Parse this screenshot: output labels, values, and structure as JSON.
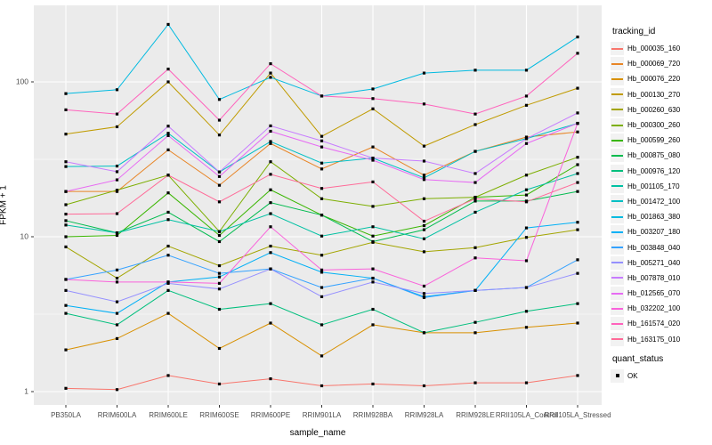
{
  "axes": {
    "x_title": "sample_name",
    "y_title": "FPKM + 1",
    "y_tick_labels": [
      "1",
      "10",
      "100"
    ]
  },
  "legend": {
    "tracking_title": "tracking_id",
    "quant_title": "quant_status",
    "quant_items": [
      {
        "label": "OK"
      }
    ]
  },
  "style": {
    "panel_bg": "#EBEBEB",
    "grid_color": "#FFFFFF",
    "tick_text_color": "#4D4D4D",
    "tick_mark_color": "#333333",
    "marker_color": "#000000",
    "legend_key_bg": "#F2F2F2"
  },
  "chart_data": {
    "type": "line",
    "title": "",
    "xlabel": "sample_name",
    "ylabel": "FPKM + 1",
    "y_scale": "log10",
    "ylim": [
      0.82,
      312
    ],
    "y_ticks": [
      1,
      10,
      100
    ],
    "y_minor_ticks": [
      3.162,
      31.62,
      316.2
    ],
    "grid": true,
    "legend_position": "right",
    "marker": "black-square (quant_status OK)",
    "categories": [
      "PB350LA",
      "RRIM600LA",
      "RRIM600LE",
      "RRIM600SE",
      "RRIM600PE",
      "RRIM901LA",
      "RRIM928BA",
      "RRIM928LA",
      "RRIM928LE",
      "RRII105LA_Control",
      "RRII105LA_Stressed"
    ],
    "series": [
      {
        "name": "Hb_000035_160",
        "color": "#F8766D",
        "values": [
          1.05,
          1.03,
          1.27,
          1.12,
          1.21,
          1.09,
          1.12,
          1.09,
          1.14,
          1.14,
          1.27
        ]
      },
      {
        "name": "Hb_000069_720",
        "color": "#E88526",
        "values": [
          19.6,
          19.6,
          36.4,
          21.5,
          40,
          27.4,
          38,
          25,
          35.6,
          44,
          47.5
        ]
      },
      {
        "name": "Hb_000076_220",
        "color": "#D89000",
        "values": [
          1.86,
          2.2,
          3.2,
          1.9,
          2.77,
          1.7,
          2.7,
          2.4,
          2.4,
          2.6,
          2.77
        ]
      },
      {
        "name": "Hb_000130_270",
        "color": "#C09B00",
        "values": [
          46,
          51.3,
          100,
          45.4,
          114,
          44.5,
          67,
          38.5,
          53,
          70.6,
          91
        ]
      },
      {
        "name": "Hb_000260_630",
        "color": "#A3A500",
        "values": [
          8.6,
          5.4,
          8.7,
          6.5,
          8.7,
          7.6,
          9.2,
          8.0,
          8.5,
          9.9,
          11.1
        ]
      },
      {
        "name": "Hb_000300_260",
        "color": "#7CAE00",
        "values": [
          16.1,
          20,
          25,
          10.8,
          30.5,
          17.6,
          15.7,
          17.6,
          18,
          25,
          32.6
        ]
      },
      {
        "name": "Hb_000599_260",
        "color": "#39B600",
        "values": [
          10,
          10.2,
          19.2,
          10.2,
          20.1,
          13.8,
          10.1,
          11.8,
          18,
          18.6,
          29.2
        ]
      },
      {
        "name": "Hb_000875_080",
        "color": "#00BB4E",
        "values": [
          12.7,
          10.6,
          14.4,
          9.3,
          16.6,
          13.8,
          9.3,
          11.1,
          17,
          17,
          19.6
        ]
      },
      {
        "name": "Hb_000976_120",
        "color": "#00BF7D",
        "values": [
          3.2,
          2.7,
          4.5,
          3.4,
          3.7,
          2.7,
          3.4,
          2.4,
          2.8,
          3.3,
          3.7
        ]
      },
      {
        "name": "Hb_001105_170",
        "color": "#00C1A3",
        "values": [
          11.9,
          10.6,
          12.9,
          10.8,
          14.1,
          10.1,
          11.6,
          9.7,
          14.4,
          20.1,
          25.6
        ]
      },
      {
        "name": "Hb_001472_100",
        "color": "#00BFC4",
        "values": [
          28.4,
          28.6,
          46.6,
          26.2,
          41.2,
          29.9,
          32.2,
          24,
          35.6,
          43,
          54
        ]
      },
      {
        "name": "Hb_001863_380",
        "color": "#00BAE0",
        "values": [
          84,
          89,
          235,
          77,
          107,
          81,
          90,
          114,
          119,
          119,
          195
        ]
      },
      {
        "name": "Hb_003207_180",
        "color": "#00B0F6",
        "values": [
          3.6,
          3.2,
          5.1,
          5.5,
          7.9,
          5.9,
          5.4,
          4.1,
          4.5,
          11.4,
          12.4
        ]
      },
      {
        "name": "Hb_003848_040",
        "color": "#35A2FF",
        "values": [
          5.3,
          6.1,
          7.6,
          5.8,
          6.2,
          4.7,
          5.4,
          4.05,
          4.5,
          4.7,
          7.1
        ]
      },
      {
        "name": "Hb_005271_040",
        "color": "#9590FF",
        "values": [
          4.5,
          3.8,
          5.0,
          4.6,
          6.2,
          4.1,
          5.1,
          4.3,
          4.5,
          4.7,
          5.8
        ]
      },
      {
        "name": "Hb_007878_010",
        "color": "#C77CFF",
        "values": [
          30.5,
          26.3,
          51.8,
          26.2,
          52,
          41.6,
          32.2,
          30.8,
          25.6,
          43,
          63
        ]
      },
      {
        "name": "Hb_012565_070",
        "color": "#E76BF3",
        "values": [
          19.6,
          23.3,
          45,
          24.5,
          48,
          38,
          31.2,
          23.4,
          22.4,
          40,
          54
        ]
      },
      {
        "name": "Hb_032202_100",
        "color": "#FA62DB",
        "values": [
          5.3,
          5.1,
          5.1,
          5.0,
          11.6,
          6.1,
          6.2,
          4.8,
          7.3,
          7.0,
          54
        ]
      },
      {
        "name": "Hb_161574_020",
        "color": "#FF62BC",
        "values": [
          66,
          62,
          121,
          56.6,
          131,
          81,
          78,
          72,
          62,
          81,
          153
        ]
      },
      {
        "name": "Hb_163175_010",
        "color": "#FF6A98",
        "values": [
          14,
          14.1,
          25,
          16.8,
          25.3,
          20.5,
          22.6,
          12.6,
          17.6,
          16.8,
          22.4
        ]
      }
    ]
  }
}
